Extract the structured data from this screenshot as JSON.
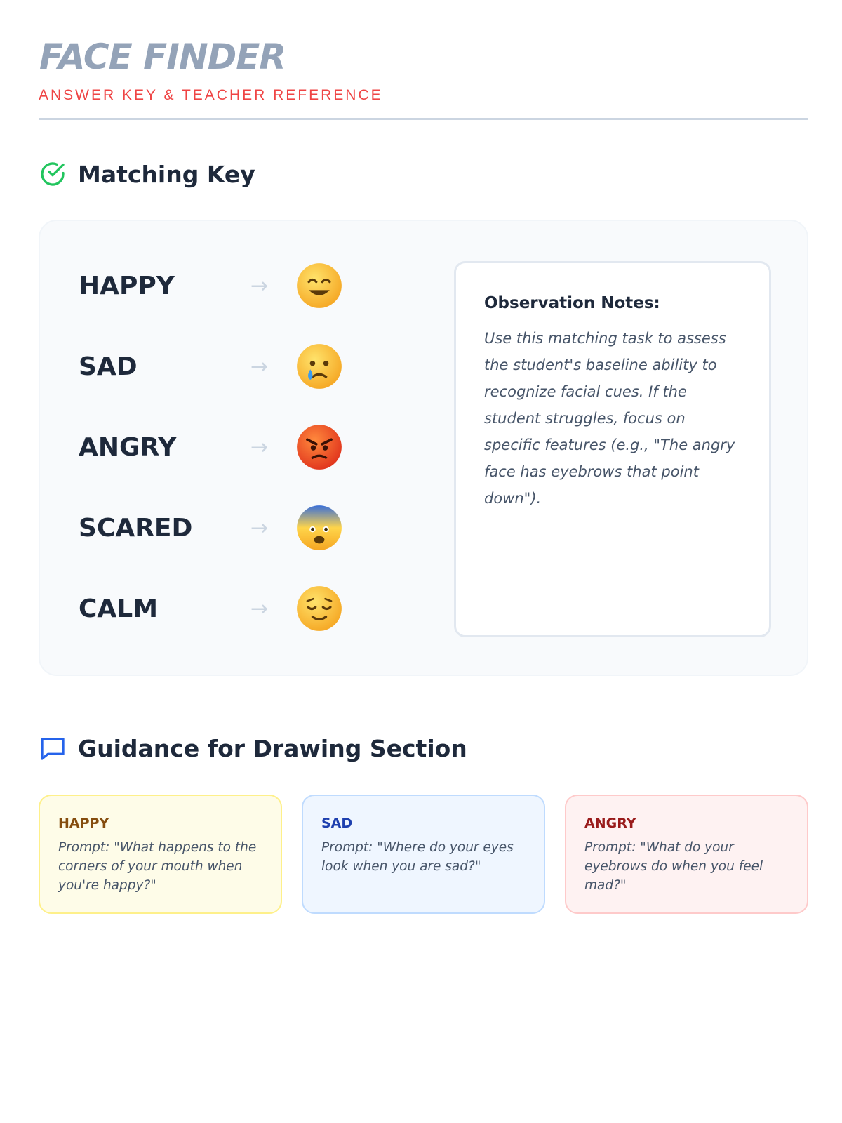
{
  "header": {
    "title": "FACE FINDER",
    "subtitle": "ANSWER KEY & TEACHER REFERENCE"
  },
  "matching": {
    "heading": "Matching Key",
    "heading_icon": "check-circle-icon",
    "items": [
      {
        "label": "HAPPY",
        "emoji": "smiling-face-icon"
      },
      {
        "label": "SAD",
        "emoji": "crying-face-icon"
      },
      {
        "label": "ANGRY",
        "emoji": "angry-face-icon"
      },
      {
        "label": "SCARED",
        "emoji": "fearful-face-icon"
      },
      {
        "label": "CALM",
        "emoji": "relieved-face-icon"
      }
    ],
    "arrow": "→",
    "notes": {
      "title": "Observation Notes:",
      "body": "Use this matching task to assess the student's baseline ability to recognize facial cues. If the student struggles, focus on specific features (e.g., \"The angry face has eyebrows that point down\")."
    }
  },
  "guidance": {
    "heading": "Guidance for Drawing Section",
    "heading_icon": "speech-bubble-icon",
    "cards": [
      {
        "title": "HAPPY",
        "prompt": "Prompt: \"What happens to the corners of your mouth when you're happy?\"",
        "color": "#854d0e",
        "bg": "#fefce8",
        "border": "#fef08a"
      },
      {
        "title": "SAD",
        "prompt": "Prompt: \"Where do your eyes look when you are sad?\"",
        "color": "#1e40af",
        "bg": "#eff6ff",
        "border": "#bfdbfe"
      },
      {
        "title": "ANGRY",
        "prompt": "Prompt: \"What do your eyebrows do when you feel mad?\"",
        "color": "#991b1b",
        "bg": "#fef2f2",
        "border": "#fecaca"
      }
    ]
  }
}
